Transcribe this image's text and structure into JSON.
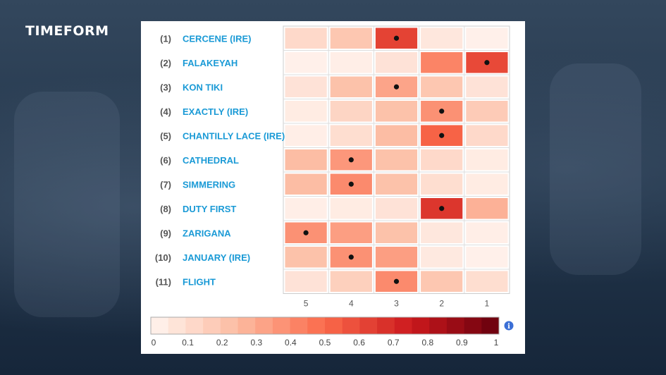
{
  "brand": {
    "logo_text": "TIMEFORM"
  },
  "colors": {
    "name_link": "#1a9ad6",
    "scale_low": "#fff5f0",
    "scale_high": "#67000d",
    "info": "#3b6fd6"
  },
  "info_icon": "info-icon",
  "chart_data": {
    "type": "heatmap",
    "x_categories": [
      "5",
      "4",
      "3",
      "2",
      "1"
    ],
    "rows": [
      {
        "num": "(1)",
        "name": "CERCENE (IRE)",
        "values": [
          0.12,
          0.2,
          0.62,
          0.06,
          0.02
        ],
        "marker": "3"
      },
      {
        "num": "(2)",
        "name": "FALAKEYAH",
        "values": [
          0.02,
          0.03,
          0.08,
          0.42,
          0.6
        ],
        "marker": "1"
      },
      {
        "num": "(3)",
        "name": "KON TIKI",
        "values": [
          0.08,
          0.22,
          0.32,
          0.2,
          0.08
        ],
        "marker": "3"
      },
      {
        "num": "(4)",
        "name": "EXACTLY (IRE)",
        "values": [
          0.04,
          0.14,
          0.22,
          0.38,
          0.18
        ],
        "marker": "2"
      },
      {
        "num": "(5)",
        "name": "CHANTILLY LACE (IRE)",
        "values": [
          0.03,
          0.1,
          0.24,
          0.52,
          0.12
        ],
        "marker": "2"
      },
      {
        "num": "(6)",
        "name": "CATHEDRAL",
        "values": [
          0.24,
          0.36,
          0.22,
          0.12,
          0.04
        ],
        "marker": "4"
      },
      {
        "num": "(7)",
        "name": "SIMMERING",
        "values": [
          0.24,
          0.4,
          0.22,
          0.1,
          0.04
        ],
        "marker": "4"
      },
      {
        "num": "(8)",
        "name": "DUTY FIRST",
        "values": [
          0.03,
          0.04,
          0.08,
          0.66,
          0.28
        ],
        "marker": "2"
      },
      {
        "num": "(9)",
        "name": "ZARIGANA",
        "values": [
          0.38,
          0.34,
          0.22,
          0.06,
          0.03
        ],
        "marker": "5"
      },
      {
        "num": "(10)",
        "name": "JANUARY (IRE)",
        "values": [
          0.22,
          0.38,
          0.34,
          0.05,
          0.02
        ],
        "marker": "4"
      },
      {
        "num": "(11)",
        "name": "FLIGHT",
        "values": [
          0.08,
          0.16,
          0.4,
          0.2,
          0.1
        ],
        "marker": "3"
      }
    ],
    "colorbar": {
      "min": 0,
      "max": 1,
      "steps": 20,
      "ticks": [
        "0",
        "0.1",
        "0.2",
        "0.3",
        "0.4",
        "0.5",
        "0.6",
        "0.7",
        "0.8",
        "0.9",
        "1"
      ]
    },
    "title": "",
    "xlabel": "",
    "ylabel": ""
  }
}
